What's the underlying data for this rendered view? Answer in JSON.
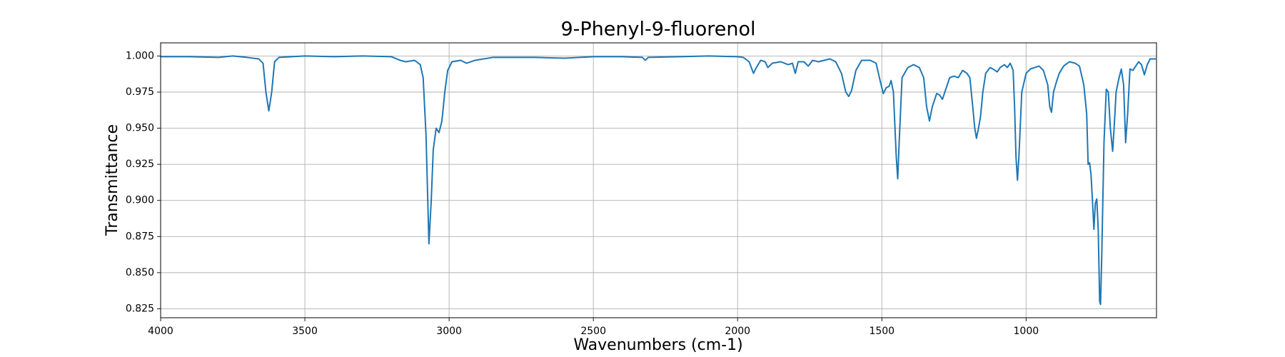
{
  "chart_data": {
    "type": "line",
    "title": "9-Phenyl-9-fluorenol",
    "xlabel": "Wavenumbers (cm-1)",
    "ylabel": "Transmittance",
    "color": "#1f77b4",
    "grid": true,
    "xlim": [
      4000,
      548
    ],
    "ylim": [
      0.8188,
      1.0091
    ],
    "xticks": [
      4000,
      3500,
      3000,
      2500,
      2000,
      1500,
      1000
    ],
    "yticks": [
      {
        "value": 0.825,
        "label": "0.825"
      },
      {
        "value": 0.85,
        "label": "0.850"
      },
      {
        "value": 0.875,
        "label": "0.875"
      },
      {
        "value": 0.9,
        "label": "0.900"
      },
      {
        "value": 0.925,
        "label": "0.925"
      },
      {
        "value": 0.95,
        "label": "0.950"
      },
      {
        "value": 0.975,
        "label": "0.975"
      },
      {
        "value": 1.0,
        "label": "1.000"
      }
    ],
    "x": [
      4000,
      3900,
      3800,
      3750,
      3700,
      3660,
      3645,
      3635,
      3625,
      3615,
      3605,
      3590,
      3500,
      3400,
      3300,
      3200,
      3170,
      3150,
      3120,
      3100,
      3090,
      3080,
      3070,
      3062,
      3055,
      3045,
      3035,
      3025,
      3015,
      3005,
      2990,
      2960,
      2940,
      2910,
      2850,
      2700,
      2600,
      2500,
      2400,
      2330,
      2320,
      2310,
      2200,
      2100,
      2000,
      1980,
      1960,
      1945,
      1935,
      1920,
      1905,
      1895,
      1880,
      1850,
      1825,
      1810,
      1800,
      1790,
      1770,
      1755,
      1740,
      1720,
      1700,
      1680,
      1660,
      1640,
      1625,
      1615,
      1605,
      1590,
      1570,
      1540,
      1520,
      1505,
      1495,
      1485,
      1475,
      1468,
      1460,
      1450,
      1445,
      1440,
      1430,
      1410,
      1390,
      1370,
      1355,
      1345,
      1335,
      1325,
      1310,
      1300,
      1290,
      1280,
      1265,
      1250,
      1235,
      1220,
      1205,
      1195,
      1185,
      1178,
      1172,
      1165,
      1158,
      1150,
      1140,
      1125,
      1115,
      1100,
      1090,
      1075,
      1065,
      1055,
      1045,
      1040,
      1035,
      1030,
      1025,
      1015,
      1000,
      985,
      970,
      955,
      940,
      925,
      918,
      912,
      905,
      895,
      885,
      870,
      850,
      830,
      815,
      800,
      790,
      785,
      780,
      775,
      770,
      765,
      760,
      755,
      750,
      745,
      742,
      738,
      730,
      722,
      715,
      708,
      700,
      695,
      688,
      680,
      670,
      662,
      655,
      648,
      640,
      630,
      620,
      610,
      600,
      590,
      580,
      570,
      550
    ],
    "values": [
      0.9995,
      0.9995,
      0.999,
      1.0,
      0.999,
      0.998,
      0.995,
      0.975,
      0.962,
      0.975,
      0.996,
      0.999,
      1.0,
      0.9995,
      1.0,
      0.9995,
      0.997,
      0.996,
      0.997,
      0.994,
      0.985,
      0.945,
      0.87,
      0.9,
      0.935,
      0.95,
      0.947,
      0.955,
      0.975,
      0.99,
      0.996,
      0.997,
      0.995,
      0.997,
      0.999,
      0.999,
      0.9985,
      0.9995,
      0.9995,
      0.999,
      0.997,
      0.999,
      0.9995,
      1.0,
      0.9995,
      0.999,
      0.996,
      0.988,
      0.992,
      0.997,
      0.996,
      0.992,
      0.995,
      0.996,
      0.994,
      0.995,
      0.988,
      0.996,
      0.996,
      0.993,
      0.997,
      0.996,
      0.997,
      0.998,
      0.996,
      0.988,
      0.975,
      0.972,
      0.976,
      0.99,
      0.997,
      0.997,
      0.995,
      0.982,
      0.974,
      0.978,
      0.979,
      0.983,
      0.975,
      0.93,
      0.915,
      0.94,
      0.985,
      0.992,
      0.994,
      0.992,
      0.985,
      0.965,
      0.955,
      0.965,
      0.974,
      0.973,
      0.97,
      0.976,
      0.985,
      0.986,
      0.985,
      0.99,
      0.988,
      0.985,
      0.965,
      0.95,
      0.943,
      0.95,
      0.958,
      0.975,
      0.988,
      0.992,
      0.991,
      0.989,
      0.992,
      0.994,
      0.992,
      0.995,
      0.99,
      0.965,
      0.93,
      0.914,
      0.93,
      0.975,
      0.988,
      0.991,
      0.992,
      0.993,
      0.99,
      0.98,
      0.965,
      0.961,
      0.975,
      0.982,
      0.988,
      0.993,
      0.996,
      0.995,
      0.993,
      0.98,
      0.96,
      0.925,
      0.926,
      0.918,
      0.9,
      0.88,
      0.898,
      0.901,
      0.88,
      0.83,
      0.828,
      0.86,
      0.94,
      0.977,
      0.975,
      0.95,
      0.934,
      0.95,
      0.975,
      0.983,
      0.991,
      0.98,
      0.94,
      0.96,
      0.991,
      0.99,
      0.993,
      0.996,
      0.994,
      0.987,
      0.994,
      0.998,
      0.998
    ]
  }
}
